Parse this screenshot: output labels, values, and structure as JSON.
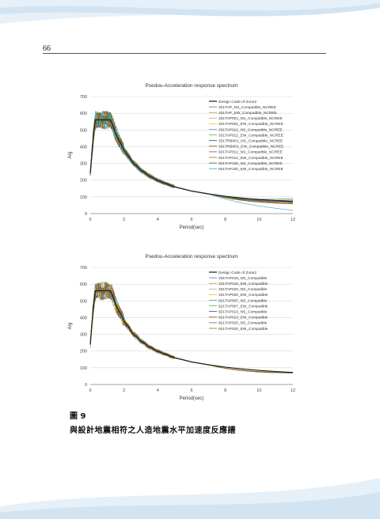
{
  "page": {
    "number": "66"
  },
  "caption": {
    "figure_label": "圖 9",
    "text": "與設計地震相符之人造地震水平加速度反應譜"
  },
  "chart_data": [
    {
      "type": "line",
      "title": "Psedou-Acceleration response spectrum",
      "xlabel": "Period(sec)",
      "ylabel": "A/g",
      "xlim": [
        0,
        12
      ],
      "ylim": [
        0,
        700
      ],
      "xticks": [
        0,
        2,
        4,
        6,
        8,
        10,
        12
      ],
      "yticks": [
        0,
        100,
        200,
        300,
        400,
        500,
        600,
        700
      ],
      "grid": "horizontal",
      "legend": "top-right",
      "design_code": {
        "name": "Design Code of Zone2",
        "color": "#1a1a1a",
        "x": [
          0,
          0.05,
          0.1,
          0.15,
          0.2,
          0.3,
          1.2,
          1.3,
          1.5,
          2,
          2.5,
          3,
          3.5,
          4,
          5,
          6,
          7,
          8,
          9,
          10,
          11,
          12
        ],
        "y": [
          240,
          300,
          360,
          420,
          480,
          560,
          560,
          538,
          480,
          380,
          308,
          260,
          225,
          198,
          160,
          135,
          118,
          104,
          93,
          84,
          78,
          72
        ]
      },
      "series": [
        {
          "name": "331TAP_NS_Compatible_NCREE",
          "color": "#4472c4",
          "tail": 70
        },
        {
          "name": "331TAP_EW_Compatible_NCREE",
          "color": "#ed7d31",
          "tail": 68
        },
        {
          "name": "331TAP001_NS_Compatible_NCREE",
          "color": "#a5a5a5",
          "tail": 75
        },
        {
          "name": "331TAP001_EW_Compatible_NCREE",
          "color": "#ffc000",
          "tail": 60
        },
        {
          "name": "331TAP012_NS_Compatible_NCREE",
          "color": "#5b9bd5",
          "tail": 65
        },
        {
          "name": "331TAP012_EW_Compatible_NCREE",
          "color": "#70ad47",
          "tail": 78
        },
        {
          "name": "331TRB001_NS_Compatible_NCREE",
          "color": "#264478",
          "tail": 72
        },
        {
          "name": "331TRB001_EW_Compatible_NCREE",
          "color": "#9e480e",
          "tail": 58
        },
        {
          "name": "921TAP012_NS_Compatible_NCREE",
          "color": "#636363",
          "tail": 80
        },
        {
          "name": "921TAP012_EW_Compatible_NCREE",
          "color": "#997300",
          "tail": 62
        },
        {
          "name": "921TAP100_NS_Compatible_NCREE",
          "color": "#43682b",
          "tail": 88
        },
        {
          "name": "921TAP100_EW_Compatible_NCREE",
          "color": "#2fa0c8",
          "tail": 20
        }
      ]
    },
    {
      "type": "line",
      "title": "Psedou-Acceleration response spectrum",
      "xlabel": "Period(sec)",
      "ylabel": "A/g",
      "xlim": [
        0,
        12
      ],
      "ylim": [
        0,
        700
      ],
      "xticks": [
        0,
        2,
        4,
        6,
        8,
        10,
        12
      ],
      "yticks": [
        0,
        100,
        200,
        300,
        400,
        500,
        600,
        700
      ],
      "grid": "horizontal",
      "legend": "top-right",
      "design_code": {
        "name": "Design Code of Zone2",
        "color": "#1a1a1a",
        "x": [
          0,
          0.05,
          0.1,
          0.15,
          0.2,
          0.3,
          1.2,
          1.3,
          1.5,
          2,
          2.5,
          3,
          3.5,
          4,
          5,
          6,
          7,
          8,
          9,
          10,
          11,
          12
        ],
        "y": [
          240,
          300,
          360,
          420,
          480,
          560,
          560,
          538,
          480,
          380,
          308,
          260,
          225,
          198,
          160,
          135,
          118,
          104,
          93,
          84,
          78,
          72
        ]
      },
      "series": [
        {
          "name": "331TAP019_NS_Compatible",
          "color": "#4472c4",
          "tail": 70
        },
        {
          "name": "331TAP019_EW_Compatible",
          "color": "#ed7d31",
          "tail": 72
        },
        {
          "name": "331TAP020_NS_Compatible",
          "color": "#a5a5a5",
          "tail": 68
        },
        {
          "name": "331TAP020_EW_Compatible",
          "color": "#ffc000",
          "tail": 74
        },
        {
          "name": "921TAP007_NS_Compatible",
          "color": "#5b9bd5",
          "tail": 70
        },
        {
          "name": "921TAP007_EW_Compatible",
          "color": "#70ad47",
          "tail": 71
        },
        {
          "name": "921TAP013_NS_Compatible",
          "color": "#264478",
          "tail": 69
        },
        {
          "name": "921TAP013_EW_Compatible",
          "color": "#9e480e",
          "tail": 73
        },
        {
          "name": "921TAP020_NS_Compatible",
          "color": "#636363",
          "tail": 72
        },
        {
          "name": "921TAP020_EW_Compatible",
          "color": "#997300",
          "tail": 70
        }
      ]
    }
  ]
}
